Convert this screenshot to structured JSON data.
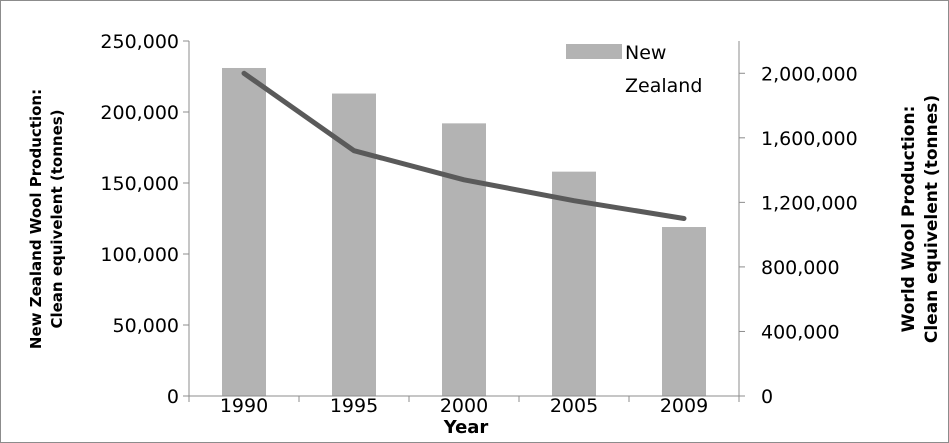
{
  "chart_data": {
    "type": "bar",
    "categories": [
      "1990",
      "1995",
      "2000",
      "2005",
      "2009"
    ],
    "series": [
      {
        "name": "New Zealand",
        "kind": "bar",
        "axis": "left",
        "color": "#b3b3b3",
        "values": [
          231000,
          213000,
          192000,
          158000,
          119000
        ]
      },
      {
        "kind": "line",
        "axis": "right",
        "color": "#5a5a5a",
        "values": [
          2000000,
          1520000,
          1340000,
          1210000,
          1100000
        ]
      }
    ],
    "xlabel": "Year",
    "ylabel_left_line1": "New Zealand Wool Production:",
    "ylabel_left_line2": "Clean equivelent (tonnes)",
    "ylabel_right_line1": "World Wool Production:",
    "ylabel_right_line2": "Clean equivelent (tonnes)",
    "ylim_left": [
      0,
      250000
    ],
    "yticks_left": [
      "0",
      "50,000",
      "100,000",
      "150,000",
      "200,000",
      "250,000"
    ],
    "ylim_right": [
      0,
      2200000
    ],
    "yticks_right": [
      "0",
      "400,000",
      "800,000",
      "1,200,000",
      "1,600,000",
      "2,000,000"
    ],
    "legend": {
      "label_line1": "New",
      "label_line2": "Zealand",
      "placement": "top-right"
    },
    "grid": false
  }
}
